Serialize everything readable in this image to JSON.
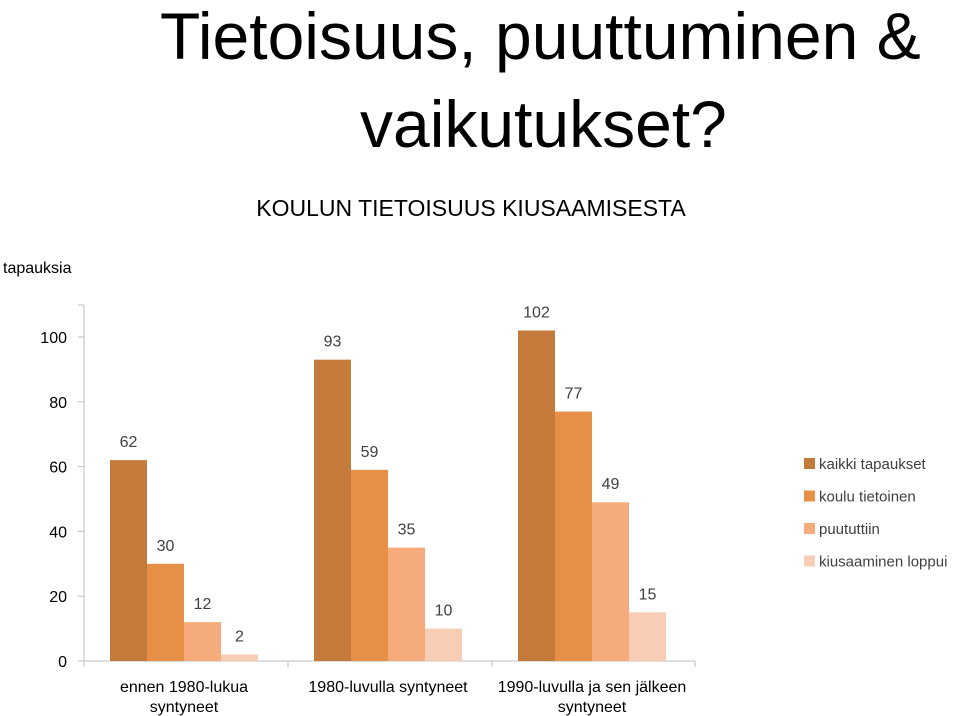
{
  "page": {
    "title_line1": "Tietoisuus, puuttuminen &",
    "title_line2": "vaikutukset?"
  },
  "chart_data": {
    "type": "bar",
    "title": "KOULUN TIETOISUUS KIUSAAMISESTA",
    "ylabel": "tapauksia",
    "xlabel": "",
    "ylim": [
      0,
      110
    ],
    "yticks": [
      0,
      20,
      40,
      60,
      80,
      100
    ],
    "grid": false,
    "legend_position": "right",
    "categories": [
      [
        "ennen 1980-lukua",
        "syntyneet"
      ],
      [
        "1980-luvulla syntyneet"
      ],
      [
        "1990-luvulla ja sen jälkeen",
        "syntyneet"
      ]
    ],
    "series": [
      {
        "name": "kaikki tapaukset",
        "color": "#c47a3a",
        "values": [
          62,
          93,
          102
        ]
      },
      {
        "name": "koulu tietoinen",
        "color": "#e68f47",
        "values": [
          30,
          59,
          77
        ]
      },
      {
        "name": "puututtiin",
        "color": "#f5ab7c",
        "values": [
          12,
          35,
          49
        ]
      },
      {
        "name": "kiusaaminen loppui",
        "color": "#f8cdb5",
        "values": [
          2,
          10,
          15
        ]
      }
    ]
  }
}
